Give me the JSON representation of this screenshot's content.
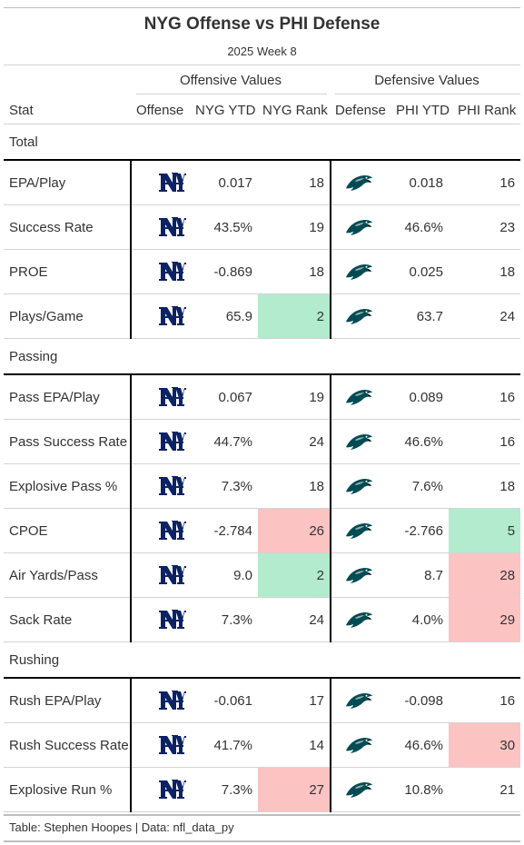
{
  "title": "NYG Offense vs PHI Defense",
  "subtitle": "2025 Week 8",
  "spanners": {
    "offensive": "Offensive Values",
    "defensive": "Defensive Values"
  },
  "columns": {
    "stat": "Stat",
    "offense": "Offense",
    "off_ytd": "NYG YTD",
    "off_rank": "NYG Rank",
    "defense": "Defense",
    "def_ytd": "PHI YTD",
    "def_rank": "PHI Rank"
  },
  "offense_logo": "giants-ny-logo",
  "defense_logo": "eagles-head-logo",
  "colors": {
    "good": "#b2ebce",
    "bad": "#fcc3c3",
    "giants_blue": "#0b2265",
    "eagles_green": "#004c54"
  },
  "groups": [
    {
      "name": "Total",
      "rows": [
        {
          "stat": "EPA/Play",
          "off_ytd": "0.017",
          "off_rank": "18",
          "off_rank_color": "",
          "def_ytd": "0.018",
          "def_rank": "16",
          "def_rank_color": ""
        },
        {
          "stat": "Success Rate",
          "off_ytd": "43.5%",
          "off_rank": "19",
          "off_rank_color": "",
          "def_ytd": "46.6%",
          "def_rank": "23",
          "def_rank_color": ""
        },
        {
          "stat": "PROE",
          "off_ytd": "-0.869",
          "off_rank": "18",
          "off_rank_color": "",
          "def_ytd": "0.025",
          "def_rank": "18",
          "def_rank_color": ""
        },
        {
          "stat": "Plays/Game",
          "off_ytd": "65.9",
          "off_rank": "2",
          "off_rank_color": "green",
          "def_ytd": "63.7",
          "def_rank": "24",
          "def_rank_color": ""
        }
      ]
    },
    {
      "name": "Passing",
      "rows": [
        {
          "stat": "Pass EPA/Play",
          "off_ytd": "0.067",
          "off_rank": "19",
          "off_rank_color": "",
          "def_ytd": "0.089",
          "def_rank": "16",
          "def_rank_color": ""
        },
        {
          "stat": "Pass Success Rate",
          "off_ytd": "44.7%",
          "off_rank": "24",
          "off_rank_color": "",
          "def_ytd": "46.6%",
          "def_rank": "16",
          "def_rank_color": ""
        },
        {
          "stat": "Explosive Pass %",
          "off_ytd": "7.3%",
          "off_rank": "18",
          "off_rank_color": "",
          "def_ytd": "7.6%",
          "def_rank": "18",
          "def_rank_color": ""
        },
        {
          "stat": "CPOE",
          "off_ytd": "-2.784",
          "off_rank": "26",
          "off_rank_color": "red",
          "def_ytd": "-2.766",
          "def_rank": "5",
          "def_rank_color": "green"
        },
        {
          "stat": "Air Yards/Pass",
          "off_ytd": "9.0",
          "off_rank": "2",
          "off_rank_color": "green",
          "def_ytd": "8.7",
          "def_rank": "28",
          "def_rank_color": "red"
        },
        {
          "stat": "Sack Rate",
          "off_ytd": "7.3%",
          "off_rank": "24",
          "off_rank_color": "",
          "def_ytd": "4.0%",
          "def_rank": "29",
          "def_rank_color": "red"
        }
      ]
    },
    {
      "name": "Rushing",
      "rows": [
        {
          "stat": "Rush EPA/Play",
          "off_ytd": "-0.061",
          "off_rank": "17",
          "off_rank_color": "",
          "def_ytd": "-0.098",
          "def_rank": "16",
          "def_rank_color": ""
        },
        {
          "stat": "Rush Success Rate",
          "off_ytd": "41.7%",
          "off_rank": "14",
          "off_rank_color": "",
          "def_ytd": "46.6%",
          "def_rank": "30",
          "def_rank_color": "red"
        },
        {
          "stat": "Explosive Run %",
          "off_ytd": "7.3%",
          "off_rank": "27",
          "off_rank_color": "red",
          "def_ytd": "10.8%",
          "def_rank": "21",
          "def_rank_color": ""
        }
      ]
    }
  ],
  "footer": "Table: Stephen Hoopes | Data: nfl_data_py"
}
